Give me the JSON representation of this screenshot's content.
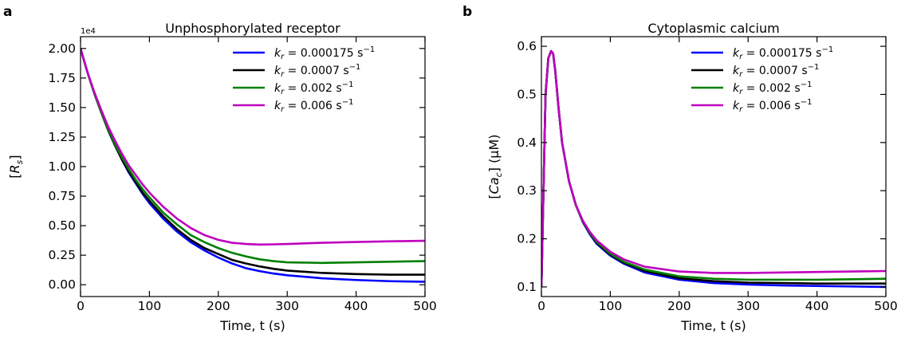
{
  "chart_data": [
    {
      "type": "line",
      "panel_label": "a",
      "title": "Unphosphorylated receptor",
      "xlabel": "Time, t (s)",
      "ylabel": "[R_s]",
      "ylabel_main": "R",
      "ylabel_sub": "s",
      "y_scale_note": "1e4",
      "xlim": [
        0,
        500
      ],
      "ylim": [
        -0.1,
        2.1
      ],
      "x_ticks": [
        0,
        100,
        200,
        300,
        400,
        500
      ],
      "x_tick_labels": [
        "0",
        "100",
        "200",
        "300",
        "400",
        "500"
      ],
      "y_ticks": [
        0.0,
        0.25,
        0.5,
        0.75,
        1.0,
        1.25,
        1.5,
        1.75,
        2.0
      ],
      "y_tick_labels": [
        "0.00",
        "0.25",
        "0.50",
        "0.75",
        "1.00",
        "1.25",
        "1.50",
        "1.75",
        "2.00"
      ],
      "grid": false,
      "legend_position": "top-right",
      "series": [
        {
          "name": "k_r = 0.000175 s^-1",
          "k_value": "0.000175",
          "color": "#0000ff",
          "x": [
            0,
            10,
            20,
            30,
            40,
            50,
            60,
            70,
            80,
            90,
            100,
            120,
            140,
            160,
            180,
            200,
            220,
            240,
            260,
            280,
            300,
            350,
            400,
            450,
            500
          ],
          "y": [
            2.0,
            1.8,
            1.62,
            1.46,
            1.31,
            1.18,
            1.06,
            0.95,
            0.86,
            0.77,
            0.69,
            0.56,
            0.45,
            0.36,
            0.29,
            0.23,
            0.18,
            0.14,
            0.115,
            0.095,
            0.08,
            0.055,
            0.04,
            0.03,
            0.025
          ]
        },
        {
          "name": "k_r = 0.0007 s^-1",
          "k_value": "0.0007",
          "color": "#000000",
          "x": [
            0,
            10,
            20,
            30,
            40,
            50,
            60,
            70,
            80,
            90,
            100,
            120,
            140,
            160,
            180,
            200,
            220,
            240,
            260,
            280,
            300,
            350,
            400,
            450,
            500
          ],
          "y": [
            2.0,
            1.8,
            1.62,
            1.46,
            1.31,
            1.18,
            1.06,
            0.96,
            0.87,
            0.78,
            0.71,
            0.58,
            0.47,
            0.38,
            0.31,
            0.26,
            0.21,
            0.18,
            0.155,
            0.135,
            0.12,
            0.1,
            0.09,
            0.085,
            0.085
          ]
        },
        {
          "name": "k_r = 0.002 s^-1",
          "k_value": "0.002",
          "color": "#008000",
          "x": [
            0,
            10,
            20,
            30,
            40,
            50,
            60,
            70,
            80,
            90,
            100,
            120,
            140,
            160,
            180,
            200,
            220,
            240,
            260,
            280,
            300,
            350,
            400,
            450,
            500
          ],
          "y": [
            2.0,
            1.8,
            1.62,
            1.46,
            1.32,
            1.19,
            1.08,
            0.98,
            0.89,
            0.81,
            0.74,
            0.61,
            0.51,
            0.42,
            0.36,
            0.31,
            0.27,
            0.24,
            0.215,
            0.2,
            0.19,
            0.185,
            0.19,
            0.195,
            0.2
          ]
        },
        {
          "name": "k_r = 0.006 s^-1",
          "k_value": "0.006",
          "color": "#bf00bf",
          "x": [
            0,
            10,
            20,
            30,
            40,
            50,
            60,
            70,
            80,
            90,
            100,
            120,
            140,
            160,
            180,
            200,
            220,
            240,
            260,
            280,
            300,
            350,
            400,
            450,
            500
          ],
          "y": [
            2.0,
            1.8,
            1.63,
            1.48,
            1.34,
            1.22,
            1.11,
            1.01,
            0.93,
            0.85,
            0.78,
            0.66,
            0.56,
            0.48,
            0.42,
            0.38,
            0.355,
            0.345,
            0.34,
            0.342,
            0.345,
            0.355,
            0.362,
            0.368,
            0.372
          ]
        }
      ]
    },
    {
      "type": "line",
      "panel_label": "b",
      "title": "Cytoplasmic calcium",
      "xlabel": "Time, t (s)",
      "ylabel": "[Ca_c] (μM)",
      "ylabel_main": "Ca",
      "ylabel_sub": "c",
      "ylabel_unit": " (μM)",
      "xlim": [
        0,
        500
      ],
      "ylim": [
        0.08,
        0.62
      ],
      "x_ticks": [
        0,
        100,
        200,
        300,
        400,
        500
      ],
      "x_tick_labels": [
        "0",
        "100",
        "200",
        "300",
        "400",
        "500"
      ],
      "y_ticks": [
        0.1,
        0.2,
        0.3,
        0.4,
        0.5,
        0.6
      ],
      "y_tick_labels": [
        "0.1",
        "0.2",
        "0.3",
        "0.4",
        "0.5",
        "0.6"
      ],
      "grid": false,
      "legend_position": "top-right",
      "series": [
        {
          "name": "k_r = 0.000175 s^-1",
          "k_value": "0.000175",
          "color": "#0000ff",
          "x": [
            0,
            3,
            6,
            10,
            14,
            17,
            20,
            25,
            30,
            40,
            50,
            60,
            70,
            80,
            100,
            120,
            150,
            200,
            250,
            300,
            350,
            400,
            450,
            500
          ],
          "y": [
            0.1,
            0.3,
            0.5,
            0.575,
            0.59,
            0.585,
            0.55,
            0.47,
            0.4,
            0.32,
            0.27,
            0.235,
            0.21,
            0.19,
            0.165,
            0.148,
            0.13,
            0.115,
            0.108,
            0.105,
            0.103,
            0.102,
            0.101,
            0.1
          ]
        },
        {
          "name": "k_r = 0.0007 s^-1",
          "k_value": "0.0007",
          "color": "#000000",
          "x": [
            0,
            3,
            6,
            10,
            14,
            17,
            20,
            25,
            30,
            40,
            50,
            60,
            70,
            80,
            100,
            120,
            150,
            200,
            250,
            300,
            350,
            400,
            450,
            500
          ],
          "y": [
            0.1,
            0.3,
            0.5,
            0.575,
            0.59,
            0.585,
            0.55,
            0.47,
            0.4,
            0.32,
            0.27,
            0.236,
            0.212,
            0.192,
            0.167,
            0.15,
            0.133,
            0.118,
            0.112,
            0.109,
            0.108,
            0.107,
            0.107,
            0.107
          ]
        },
        {
          "name": "k_r = 0.002 s^-1",
          "k_value": "0.002",
          "color": "#008000",
          "x": [
            0,
            3,
            6,
            10,
            14,
            17,
            20,
            25,
            30,
            40,
            50,
            60,
            70,
            80,
            100,
            120,
            150,
            200,
            250,
            300,
            350,
            400,
            450,
            500
          ],
          "y": [
            0.1,
            0.3,
            0.5,
            0.575,
            0.59,
            0.585,
            0.55,
            0.47,
            0.4,
            0.32,
            0.27,
            0.237,
            0.213,
            0.194,
            0.169,
            0.152,
            0.136,
            0.122,
            0.117,
            0.115,
            0.115,
            0.115,
            0.116,
            0.117
          ]
        },
        {
          "name": "k_r = 0.006 s^-1",
          "k_value": "0.006",
          "color": "#bf00bf",
          "x": [
            0,
            3,
            6,
            10,
            14,
            17,
            20,
            25,
            30,
            40,
            50,
            60,
            70,
            80,
            100,
            120,
            150,
            200,
            250,
            300,
            350,
            400,
            450,
            500
          ],
          "y": [
            0.1,
            0.3,
            0.5,
            0.575,
            0.59,
            0.585,
            0.55,
            0.47,
            0.4,
            0.32,
            0.27,
            0.238,
            0.215,
            0.197,
            0.173,
            0.157,
            0.142,
            0.132,
            0.129,
            0.129,
            0.13,
            0.131,
            0.132,
            0.133
          ]
        }
      ]
    }
  ]
}
